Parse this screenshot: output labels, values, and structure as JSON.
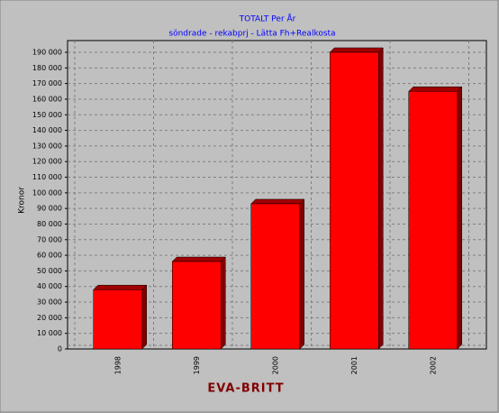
{
  "chart_data": {
    "type": "bar3d",
    "title": "TOTALT Per År",
    "subtitle": "söndrade - rekabprj - Lätta Fh+Realkosta",
    "y_label": "Kronor",
    "x_label": "EVA-BRITT",
    "categories": [
      "1998",
      "1999",
      "2000",
      "2001",
      "2002"
    ],
    "values": [
      38000,
      56000,
      93000,
      190000,
      165000
    ],
    "color": "#ff0000",
    "ylim": [
      0,
      190000
    ],
    "yticks": [
      0,
      {
        "value": 10000,
        "label": "10 000"
      },
      {
        "value": 20000,
        "label": "20 000"
      },
      {
        "value": 30000,
        "label": "30 000"
      },
      {
        "value": 40000,
        "label": "40 000"
      },
      {
        "value": 50000,
        "label": "50 000"
      },
      {
        "value": 60000,
        "label": "60 000"
      },
      {
        "value": 70000,
        "label": "70 000"
      },
      {
        "value": 80000,
        "label": "80 000"
      },
      {
        "value": 90000,
        "label": "90 000"
      },
      {
        "value": 100000,
        "label": "100 000"
      },
      {
        "value": 110000,
        "label": "110 000"
      },
      {
        "value": 120000,
        "label": "120 000"
      },
      {
        "value": 130000,
        "label": "130 000"
      },
      {
        "value": 140000,
        "label": "140 000"
      },
      {
        "value": 150000,
        "label": "150 000"
      },
      {
        "value": 160000,
        "label": "160 000"
      },
      {
        "value": 170000,
        "label": "170 000"
      },
      {
        "value": 180000,
        "label": "180 000"
      },
      {
        "value": 190000,
        "label": "190 000"
      }
    ],
    "grid": true
  }
}
